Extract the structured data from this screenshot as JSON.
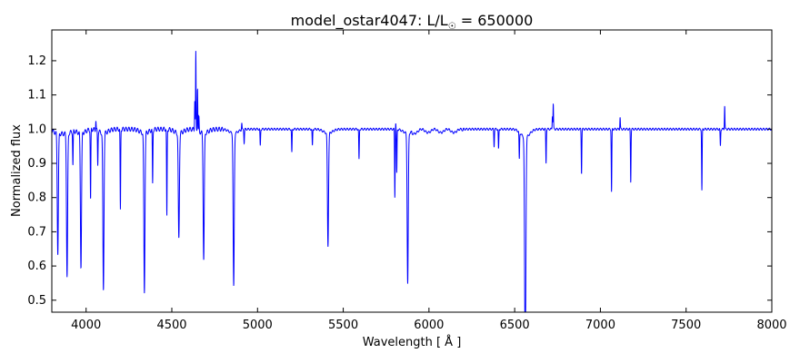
{
  "chart_data": {
    "type": "line",
    "title": {
      "main": "model_ostar4047: L/L",
      "sub_symbol": "☉",
      "suffix": " = 650000"
    },
    "xlabel": "Wavelength [ Å ]",
    "ylabel": "Normalized flux",
    "xlim": [
      3800,
      8000
    ],
    "ylim": [
      0.465,
      1.29
    ],
    "x_ticks": [
      4000,
      4500,
      5000,
      5500,
      6000,
      6500,
      7000,
      7500,
      8000
    ],
    "y_ticks": [
      0.5,
      0.6,
      0.7,
      0.8,
      0.9,
      1.0,
      1.1,
      1.2
    ],
    "x_tick_labels": [
      "4000",
      "4500",
      "5000",
      "5500",
      "6000",
      "6500",
      "7000",
      "7500",
      "8000"
    ],
    "y_tick_labels": [
      "0.5",
      "0.6",
      "0.7",
      "0.8",
      "0.9",
      "1.0",
      "1.1",
      "1.2"
    ],
    "grid": false,
    "series": [
      {
        "color": "#0000ff",
        "continuum": 1.0,
        "absorption_lines": [
          {
            "x": 3835,
            "depth": 0.35
          },
          {
            "x": 3889,
            "depth": 0.42
          },
          {
            "x": 3923,
            "depth": 0.1
          },
          {
            "x": 3970,
            "depth": 0.39
          },
          {
            "x": 4026,
            "depth": 0.21
          },
          {
            "x": 4068,
            "depth": 0.1
          },
          {
            "x": 4101,
            "depth": 0.46
          },
          {
            "x": 4200,
            "depth": 0.24
          },
          {
            "x": 4340,
            "depth": 0.465
          },
          {
            "x": 4388,
            "depth": 0.16
          },
          {
            "x": 4471,
            "depth": 0.26
          },
          {
            "x": 4541,
            "depth": 0.31
          },
          {
            "x": 4686,
            "depth": 0.37
          },
          {
            "x": 4861,
            "depth": 0.45
          },
          {
            "x": 4922,
            "depth": 0.04
          },
          {
            "x": 5016,
            "depth": 0.05
          },
          {
            "x": 5200,
            "depth": 0.07
          },
          {
            "x": 5320,
            "depth": 0.05
          },
          {
            "x": 5411,
            "depth": 0.33
          },
          {
            "x": 5592,
            "depth": 0.09
          },
          {
            "x": 5801,
            "depth": 0.2
          },
          {
            "x": 5812,
            "depth": 0.13
          },
          {
            "x": 5876,
            "depth": 0.44
          },
          {
            "x": 6380,
            "depth": 0.05
          },
          {
            "x": 6406,
            "depth": 0.06
          },
          {
            "x": 6527,
            "depth": 0.08
          },
          {
            "x": 6560,
            "depth": 0.36
          },
          {
            "x": 6563,
            "depth": 0.405
          },
          {
            "x": 6683,
            "depth": 0.1
          },
          {
            "x": 6890,
            "depth": 0.13
          },
          {
            "x": 7065,
            "depth": 0.185
          },
          {
            "x": 7177,
            "depth": 0.155
          },
          {
            "x": 7592,
            "depth": 0.18
          },
          {
            "x": 7700,
            "depth": 0.05
          }
        ],
        "emission_lines": [
          {
            "x": 4057,
            "height": 0.03
          },
          {
            "x": 4634,
            "height": 0.09
          },
          {
            "x": 4640,
            "height": 0.225
          },
          {
            "x": 4650,
            "height": 0.13
          },
          {
            "x": 4658,
            "height": 0.04
          },
          {
            "x": 4908,
            "height": 0.02
          },
          {
            "x": 5806,
            "height": 0.02
          },
          {
            "x": 6720,
            "height": 0.04
          },
          {
            "x": 6725,
            "height": 0.075
          },
          {
            "x": 7115,
            "height": 0.035
          },
          {
            "x": 7725,
            "height": 0.07
          }
        ]
      }
    ]
  }
}
